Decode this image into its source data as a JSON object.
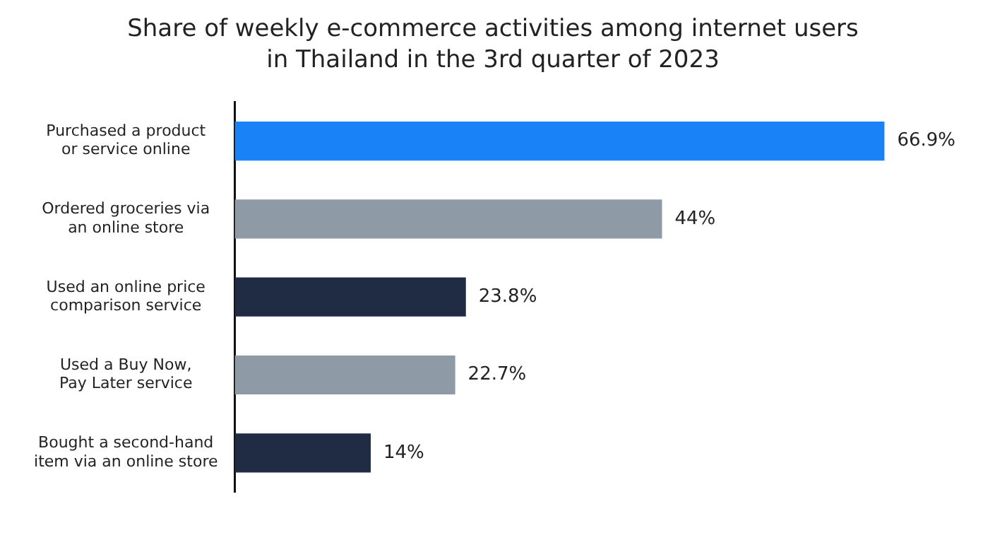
{
  "chart_data": {
    "type": "bar",
    "orientation": "horizontal",
    "title": "Share of weekly e-commerce activities among internet users\nin Thailand in the 3rd quarter of 2023",
    "categories": [
      "Purchased a product\nor service online",
      "Ordered groceries via\nan online store",
      "Used an online price\ncomparison service",
      "Used a Buy Now,\nPay Later service",
      "Bought a second-hand\nitem via an online store"
    ],
    "values": [
      66.9,
      44,
      23.8,
      22.7,
      14
    ],
    "colors": [
      "#1a82f7",
      "#8e9aa5",
      "#1f2c44",
      "#8e9aa5",
      "#1f2c44"
    ],
    "value_labels": [
      "66.9%",
      "44%",
      "23.8%",
      "22.7%",
      "14%"
    ],
    "legend": false
  }
}
